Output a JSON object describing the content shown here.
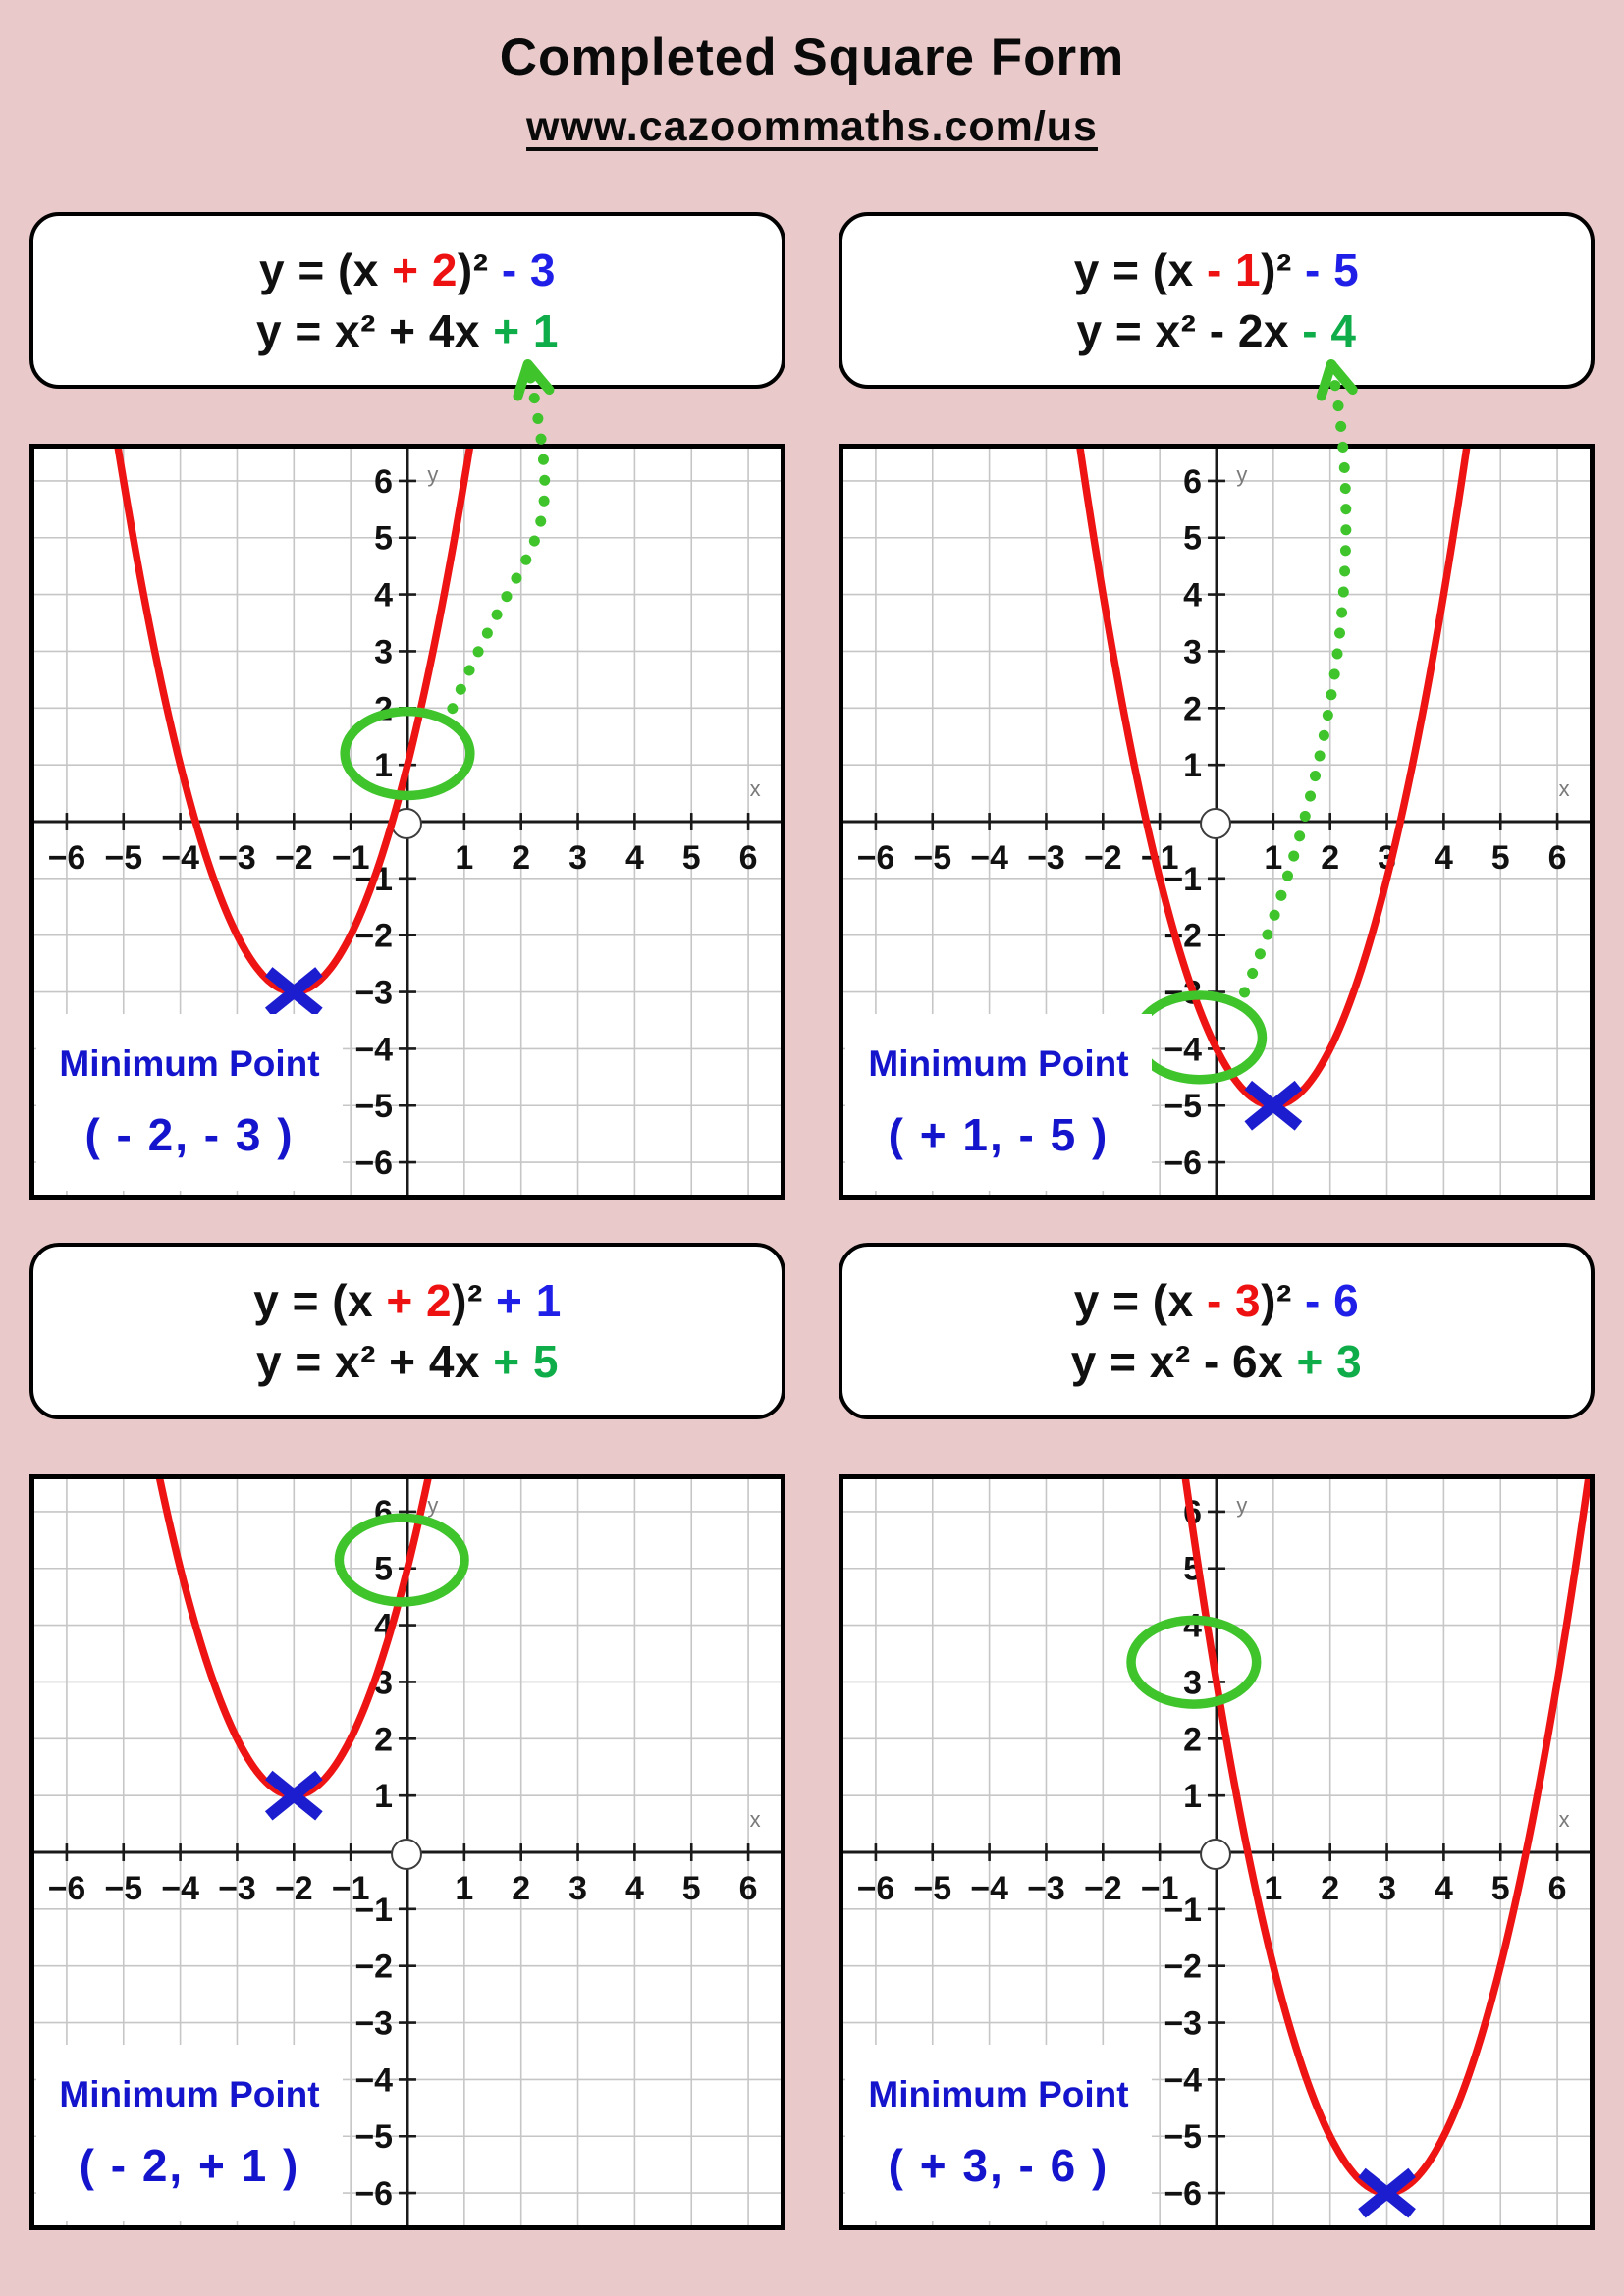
{
  "page": {
    "title": "Completed Square Form",
    "url": "www.cazoommaths.com/us"
  },
  "colors": {
    "background": "#e9c9c9",
    "equation_red": "#ee1111",
    "equation_blue": "#1f1fe8",
    "equation_green": "#0fad4a",
    "curve_red": "#ee1414",
    "marker_blue": "#1d1dd0",
    "label_blue": "#1414cc",
    "shape_green": "#3fc42c",
    "grid_gray": "#c6c6c6",
    "axis_black": "#1a1a1a"
  },
  "panels": [
    {
      "equation_line1": [
        {
          "text": "y = (x ",
          "color": "black"
        },
        {
          "text": "+ 2",
          "color": "red"
        },
        {
          "text": ")²",
          "color": "black"
        },
        {
          "text": " - 3",
          "color": "blue"
        }
      ],
      "equation_line2": [
        {
          "text": "y = x² + 4x ",
          "color": "black"
        },
        {
          "text": "+ 1",
          "color": "green"
        }
      ],
      "minimum_label": "Minimum Point",
      "minimum_coords": "( - 2, - 3 )"
    },
    {
      "equation_line1": [
        {
          "text": "y = (x ",
          "color": "black"
        },
        {
          "text": "- 1",
          "color": "red"
        },
        {
          "text": ")²",
          "color": "black"
        },
        {
          "text": " - 5",
          "color": "blue"
        }
      ],
      "equation_line2": [
        {
          "text": "y = x² - 2x ",
          "color": "black"
        },
        {
          "text": "- 4",
          "color": "green"
        }
      ],
      "minimum_label": "Minimum Point",
      "minimum_coords": "( + 1, - 5 )"
    },
    {
      "equation_line1": [
        {
          "text": "y = (x ",
          "color": "black"
        },
        {
          "text": "+ 2",
          "color": "red"
        },
        {
          "text": ")²",
          "color": "black"
        },
        {
          "text": " + 1",
          "color": "blue"
        }
      ],
      "equation_line2": [
        {
          "text": "y = x² + 4x ",
          "color": "black"
        },
        {
          "text": "+ 5",
          "color": "green"
        }
      ],
      "minimum_label": "Minimum Point",
      "minimum_coords": "( - 2, + 1 )"
    },
    {
      "equation_line1": [
        {
          "text": "y = (x ",
          "color": "black"
        },
        {
          "text": "- 3",
          "color": "red"
        },
        {
          "text": ")²",
          "color": "black"
        },
        {
          "text": " - 6",
          "color": "blue"
        }
      ],
      "equation_line2": [
        {
          "text": "y = x² - 6x ",
          "color": "black"
        },
        {
          "text": "+ 3",
          "color": "green"
        }
      ],
      "minimum_label": "Minimum Point",
      "minimum_coords": "( + 3, - 6 )"
    }
  ],
  "chart_data": [
    {
      "type": "line",
      "panel": "top-left",
      "equation_vertex_form": "y = (x + 2)² - 3",
      "equation_standard_form": "y = x² + 4x + 1",
      "coefficient_a": 1,
      "vertex": [
        -2,
        -3
      ],
      "y_intercept": [
        0,
        1
      ],
      "points_on_curve": [
        [
          -5,
          6
        ],
        [
          -4,
          1
        ],
        [
          -3,
          -2
        ],
        [
          -2,
          -3
        ],
        [
          -1,
          -2
        ],
        [
          0,
          1
        ],
        [
          1,
          6
        ]
      ],
      "xlim": [
        -6,
        6
      ],
      "ylim": [
        -6,
        6
      ],
      "x_tick_step": 1,
      "y_tick_step": 1,
      "grid": true,
      "axis_labels": {
        "x": "x",
        "y": "y"
      },
      "annotations": {
        "minimum_label": "Minimum Point",
        "minimum_coords_label": "( - 2, - 3 )",
        "circled_point": [
          0,
          1
        ],
        "ellipse_center": [
          0,
          1.2
        ],
        "arrow_to_equation": true
      }
    },
    {
      "type": "line",
      "panel": "top-right",
      "equation_vertex_form": "y = (x - 1)² - 5",
      "equation_standard_form": "y = x² - 2x - 4",
      "coefficient_a": 1,
      "vertex": [
        1,
        -5
      ],
      "y_intercept": [
        0,
        -4
      ],
      "points_on_curve": [
        [
          -2,
          4
        ],
        [
          -1,
          -1
        ],
        [
          0,
          -4
        ],
        [
          1,
          -5
        ],
        [
          2,
          -4
        ],
        [
          3,
          -1
        ],
        [
          4,
          3
        ]
      ],
      "xlim": [
        -6,
        6
      ],
      "ylim": [
        -6,
        6
      ],
      "x_tick_step": 1,
      "y_tick_step": 1,
      "grid": true,
      "axis_labels": {
        "x": "x",
        "y": "y"
      },
      "annotations": {
        "minimum_label": "Minimum Point",
        "minimum_coords_label": "( + 1, - 5 )",
        "circled_point": [
          0,
          -4
        ],
        "ellipse_center": [
          -0.3,
          -3.8
        ],
        "arrow_to_equation": true
      }
    },
    {
      "type": "line",
      "panel": "bottom-left",
      "equation_vertex_form": "y = (x + 2)² + 1",
      "equation_standard_form": "y = x² + 4x + 5",
      "coefficient_a": 1,
      "vertex": [
        -2,
        1
      ],
      "y_intercept": [
        0,
        5
      ],
      "points_on_curve": [
        [
          -4,
          5
        ],
        [
          -3,
          2
        ],
        [
          -2,
          1
        ],
        [
          -1,
          2
        ],
        [
          0,
          5
        ]
      ],
      "xlim": [
        -6,
        6
      ],
      "ylim": [
        -6,
        6
      ],
      "x_tick_step": 1,
      "y_tick_step": 1,
      "grid": true,
      "axis_labels": {
        "x": "x",
        "y": "y"
      },
      "annotations": {
        "minimum_label": "Minimum Point",
        "minimum_coords_label": "( - 2, + 1 )",
        "circled_point": [
          0,
          5
        ],
        "ellipse_center": [
          -0.1,
          5.15
        ],
        "arrow_to_equation": false
      }
    },
    {
      "type": "line",
      "panel": "bottom-right",
      "equation_vertex_form": "y = (x - 3)² - 6",
      "equation_standard_form": "y = x² - 6x + 3",
      "coefficient_a": 1,
      "vertex": [
        3,
        -6
      ],
      "y_intercept": [
        0,
        3
      ],
      "points_on_curve": [
        [
          0,
          3
        ],
        [
          1,
          -2
        ],
        [
          2,
          -5
        ],
        [
          3,
          -6
        ],
        [
          4,
          -5
        ],
        [
          5,
          -2
        ],
        [
          6,
          3
        ]
      ],
      "xlim": [
        -6,
        6
      ],
      "ylim": [
        -6,
        6
      ],
      "x_tick_step": 1,
      "y_tick_step": 1,
      "grid": true,
      "axis_labels": {
        "x": "x",
        "y": "y"
      },
      "annotations": {
        "minimum_label": "Minimum Point",
        "minimum_coords_label": "( + 3, - 6 )",
        "circled_point": [
          0,
          3
        ],
        "ellipse_center": [
          -0.4,
          3.35
        ],
        "arrow_to_equation": false
      }
    }
  ]
}
